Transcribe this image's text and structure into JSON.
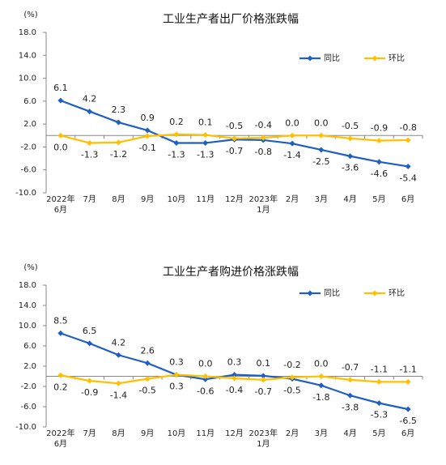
{
  "chart_data": [
    {
      "type": "line",
      "title": "工业生产者出厂价格涨跌幅",
      "y_label": "(%)",
      "categories": [
        "2022年6月",
        "7月",
        "8月",
        "9月",
        "10月",
        "11月",
        "12月",
        "2023年1月",
        "2月",
        "3月",
        "4月",
        "5月",
        "6月"
      ],
      "series": [
        {
          "name": "同比",
          "color": "#1f5fc4",
          "values": [
            6.1,
            4.2,
            2.3,
            0.9,
            -1.3,
            -1.3,
            -0.7,
            -0.8,
            -1.4,
            -2.5,
            -3.6,
            -4.6,
            -5.4
          ],
          "value_labels": [
            "6.1",
            "4.2",
            "2.3",
            "0.9",
            "-1.3",
            "-1.3",
            "-0.7",
            "-0.8",
            "-1.4",
            "-2.5",
            "-3.6",
            "-4.6",
            "-5.4"
          ]
        },
        {
          "name": "环比",
          "color": "#ffc000",
          "values": [
            0,
            -1.3,
            -1.2,
            -0.1,
            0.2,
            0.1,
            -0.5,
            -0.4,
            0,
            0,
            -0.5,
            -0.9,
            -0.8
          ],
          "value_labels": [
            "0.0",
            "-1.3",
            "-1.2",
            "-0.1",
            "0.2",
            "0.1",
            "-0.5",
            "-0.4",
            "0.0",
            "0.0",
            "-0.5",
            "-0.9",
            "-0.8"
          ]
        }
      ],
      "ylim": [
        -10,
        18
      ],
      "yticks": [
        {
          "value": 18,
          "label": "18.0"
        },
        {
          "value": 14,
          "label": "14.0"
        },
        {
          "value": 10,
          "label": "10.0"
        },
        {
          "value": 6,
          "label": "6.0"
        },
        {
          "value": 2,
          "label": "2.0"
        },
        {
          "value": -2,
          "label": "-2.0"
        },
        {
          "value": -6,
          "label": "-6.0"
        },
        {
          "value": -10,
          "label": "-10.0"
        }
      ],
      "legend": "upper right",
      "marker": "diamond",
      "grid": false
    },
    {
      "type": "line",
      "title": "工业生产者购进价格涨跌幅",
      "y_label": "(%)",
      "categories": [
        "2022年6月",
        "7月",
        "8月",
        "9月",
        "10月",
        "11月",
        "12月",
        "2023年1月",
        "2月",
        "3月",
        "4月",
        "5月",
        "6月"
      ],
      "series": [
        {
          "name": "同比",
          "color": "#1f5fc4",
          "values": [
            8.5,
            6.5,
            4.2,
            2.6,
            0.3,
            -0.6,
            0.3,
            0.1,
            -0.5,
            -1.8,
            -3.8,
            -5.3,
            -6.5
          ],
          "value_labels": [
            "8.5",
            "6.5",
            "4.2",
            "2.6",
            "0.3",
            "-0.6",
            "0.3",
            "0.1",
            "-0.5",
            "-1.8",
            "-3.8",
            "-5.3",
            "-6.5"
          ]
        },
        {
          "name": "环比",
          "color": "#ffc000",
          "values": [
            0.2,
            -0.9,
            -1.4,
            -0.5,
            0.3,
            0,
            -0.4,
            -0.7,
            -0.2,
            0,
            -0.7,
            -1.1,
            -1.1
          ],
          "value_labels": [
            "0.2",
            "-0.9",
            "-1.4",
            "-0.5",
            "0.3",
            "0.0",
            "-0.4",
            "-0.7",
            "-0.2",
            "0.0",
            "-0.7",
            "-1.1",
            "-1.1"
          ]
        }
      ],
      "ylim": [
        -10,
        18
      ],
      "yticks": [
        {
          "value": 18,
          "label": "18.0"
        },
        {
          "value": 14,
          "label": "14.0"
        },
        {
          "value": 10,
          "label": "10.0"
        },
        {
          "value": 6,
          "label": "6.0"
        },
        {
          "value": 2,
          "label": "2.0"
        },
        {
          "value": -2,
          "label": "-2.0"
        },
        {
          "value": -6,
          "label": "-6.0"
        },
        {
          "value": -10,
          "label": "-10.0"
        }
      ],
      "legend": "upper right",
      "marker": "diamond",
      "grid": false
    }
  ]
}
